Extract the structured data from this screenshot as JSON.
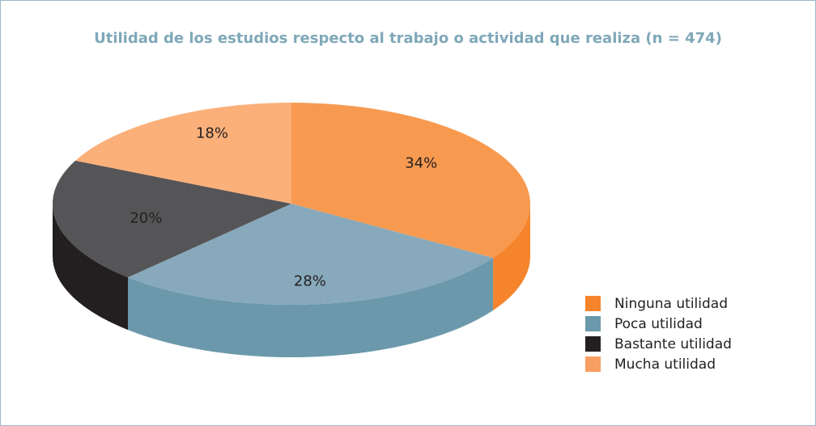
{
  "chart_data": {
    "type": "pie3d",
    "title": "Utilidad de los estudios respecto al trabajo o actividad que realiza (n = 474)",
    "categories": [
      "Ninguna utilidad",
      "Poca utilidad",
      "Bastante utilidad",
      "Mucha utilidad"
    ],
    "values": [
      34,
      28,
      20,
      18
    ],
    "value_labels": [
      "34%",
      "28%",
      "20%",
      "18%"
    ],
    "colors": [
      "#f79a50",
      "#87a9bb",
      "#555557",
      "#fbb07a"
    ],
    "side_colors": [
      "#f5842c",
      "#6b99ab",
      "#231f20",
      "#f79e62"
    ],
    "legend": "right"
  }
}
